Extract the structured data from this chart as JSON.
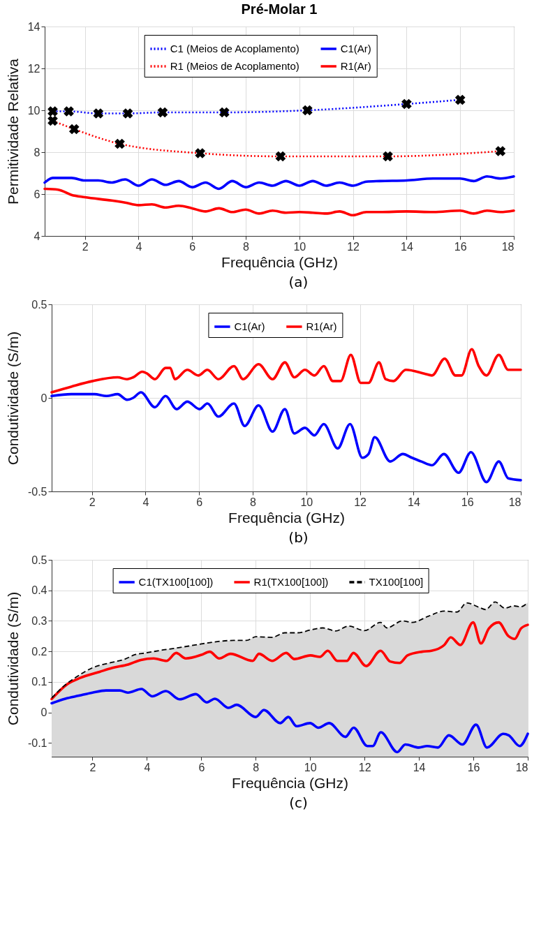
{
  "chart_data": [
    {
      "type": "line",
      "title": "Pré-Molar 1",
      "xlabel": "Frequência (GHz)",
      "ylabel": "Permitividade Relativa",
      "annotations": [
        "(a)"
      ],
      "xlim": [
        0.5,
        18
      ],
      "xticks": [
        2,
        4,
        6,
        8,
        10,
        12,
        14,
        16,
        18
      ],
      "ylim": [
        4,
        14
      ],
      "yticks": [
        4,
        6,
        8,
        10,
        12,
        14
      ],
      "grid": true,
      "legend": "top",
      "series": [
        {
          "name": "C1 (Meios de Acoplamento)",
          "color": "#0000ff",
          "line_style": "dotted",
          "marker": "cross",
          "x": [
            0.8,
            1.4,
            2.5,
            3.6,
            4.9,
            7.2,
            10.3,
            14,
            16
          ],
          "values": [
            9.95,
            9.95,
            9.85,
            9.85,
            9.9,
            9.9,
            10,
            10.3,
            10.5
          ]
        },
        {
          "name": "C1(Ar)",
          "color": "#0000ff",
          "line_style": "solid",
          "x": [
            0.5,
            0.8,
            1.5,
            2,
            2.5,
            3,
            3.5,
            4,
            4.5,
            5,
            5.5,
            6,
            6.5,
            7,
            7.5,
            8,
            8.5,
            9,
            9.5,
            10,
            10.5,
            11,
            11.5,
            12,
            12.5,
            13,
            14,
            15,
            16,
            16.5,
            17,
            17.5,
            18
          ],
          "values": [
            6.55,
            6.77,
            6.77,
            6.65,
            6.65,
            6.55,
            6.7,
            6.4,
            6.7,
            6.44,
            6.62,
            6.33,
            6.55,
            6.25,
            6.62,
            6.33,
            6.55,
            6.4,
            6.62,
            6.4,
            6.62,
            6.4,
            6.55,
            6.4,
            6.59,
            6.62,
            6.65,
            6.74,
            6.74,
            6.62,
            6.84,
            6.74,
            6.84
          ]
        },
        {
          "name": "R1 (Meios de Acoplamento)",
          "color": "#ff0000",
          "line_style": "dotted",
          "marker": "cross",
          "x": [
            0.8,
            1.6,
            3.3,
            6.3,
            9.3,
            13.3,
            17.5
          ],
          "values": [
            9.5,
            9.1,
            8.4,
            7.95,
            7.8,
            7.8,
            8.05
          ]
        },
        {
          "name": "R1(Ar)",
          "color": "#ff0000",
          "line_style": "solid",
          "x": [
            0.5,
            1,
            1.5,
            2,
            3,
            3.5,
            4,
            4.5,
            5,
            5.5,
            6,
            6.5,
            7,
            7.5,
            8,
            8.5,
            9,
            9.5,
            10,
            10.5,
            11,
            11.5,
            12,
            12.5,
            13,
            14,
            15,
            16,
            16.5,
            17,
            17.5,
            18
          ],
          "values": [
            6.25,
            6.21,
            5.96,
            5.85,
            5.69,
            5.59,
            5.47,
            5.51,
            5.36,
            5.44,
            5.32,
            5.17,
            5.32,
            5.14,
            5.26,
            5.07,
            5.21,
            5.11,
            5.14,
            5.11,
            5.07,
            5.17,
            4.99,
            5.14,
            5.14,
            5.17,
            5.14,
            5.21,
            5.07,
            5.21,
            5.14,
            5.21
          ]
        }
      ]
    },
    {
      "type": "line",
      "xlabel": "Frequência (GHz)",
      "ylabel": "Condutividade (S/m)",
      "annotations": [
        "(b)"
      ],
      "xlim": [
        0.5,
        18
      ],
      "xticks": [
        2,
        4,
        6,
        8,
        10,
        12,
        14,
        16,
        18
      ],
      "ylim": [
        -0.5,
        0.5
      ],
      "yticks": [
        -0.5,
        {
          "value": 0,
          "label": "0"
        },
        0.5
      ],
      "grid": true,
      "legend": "top",
      "series": [
        {
          "name": "C1(Ar)",
          "color": "#0000ff",
          "x": [
            0.5,
            1.23,
            2.09,
            2.55,
            2.96,
            3.31,
            3.54,
            3.83,
            4.35,
            4.75,
            5.16,
            5.56,
            6.02,
            6.31,
            6.72,
            7.3,
            7.7,
            8.22,
            8.74,
            9.2,
            9.55,
            9.95,
            10.3,
            10.65,
            11.17,
            11.63,
            12.09,
            12.32,
            12.55,
            13.13,
            13.6,
            13.94,
            14.29,
            14.69,
            15.13,
            15.68,
            16.14,
            16.72,
            17.18,
            17.53,
            18
          ],
          "values": [
            0.01,
            0.02,
            0.02,
            0.01,
            0.02,
            -0.01,
            0,
            0.03,
            -0.05,
            0.01,
            -0.06,
            -0.02,
            -0.06,
            -0.03,
            -0.1,
            -0.03,
            -0.15,
            -0.04,
            -0.18,
            -0.06,
            -0.19,
            -0.16,
            -0.2,
            -0.14,
            -0.27,
            -0.14,
            -0.32,
            -0.3,
            -0.21,
            -0.34,
            -0.3,
            -0.32,
            -0.34,
            -0.36,
            -0.3,
            -0.4,
            -0.29,
            -0.45,
            -0.34,
            -0.43,
            -0.44
          ]
        },
        {
          "name": "R1(Ar)",
          "color": "#ff0000",
          "x": [
            0.5,
            1.23,
            2.03,
            2.96,
            3.31,
            3.54,
            3.88,
            4.06,
            4.35,
            4.75,
            4.92,
            5.1,
            5.56,
            5.97,
            6.31,
            6.72,
            7.3,
            7.64,
            8.22,
            8.74,
            9.2,
            9.55,
            9.95,
            10.3,
            10.65,
            10.99,
            11.28,
            11.66,
            12.03,
            12.32,
            12.71,
            12.96,
            13.25,
            13.71,
            14.4,
            14.69,
            15.16,
            15.56,
            15.79,
            16.17,
            16.43,
            16.72,
            17.18,
            17.53,
            18
          ],
          "values": [
            0.03,
            0.06,
            0.09,
            0.11,
            0.1,
            0.11,
            0.14,
            0.13,
            0.1,
            0.16,
            0.16,
            0.1,
            0.15,
            0.12,
            0.15,
            0.1,
            0.17,
            0.1,
            0.18,
            0.1,
            0.19,
            0.11,
            0.15,
            0.12,
            0.17,
            0.09,
            0.09,
            0.23,
            0.08,
            0.08,
            0.19,
            0.1,
            0.09,
            0.15,
            0.13,
            0.12,
            0.21,
            0.12,
            0.12,
            0.26,
            0.17,
            0.12,
            0.23,
            0.15,
            0.15
          ]
        }
      ]
    },
    {
      "type": "line",
      "xlabel": "Frequência (GHz)",
      "ylabel": "Condutividade (S/m)",
      "annotations": [
        "(c)"
      ],
      "xlim": [
        0.5,
        18
      ],
      "xticks": [
        2,
        4,
        6,
        8,
        10,
        12,
        14,
        16,
        18
      ],
      "ylim": [
        -0.145,
        0.5
      ],
      "yticks": [
        -0.1,
        {
          "value": 0,
          "label": "0"
        },
        0.1,
        0.2,
        0.3,
        0.4,
        0.5
      ],
      "grid": true,
      "legend": "top",
      "series": [
        {
          "name": "C1(TX100[100])",
          "color": "#0000ff",
          "x": [
            0.5,
            1,
            1.5,
            2,
            2.5,
            3,
            3.3,
            3.8,
            4.2,
            4.7,
            5.2,
            5.8,
            6.2,
            6.5,
            7,
            7.3,
            8,
            8.3,
            8.9,
            9.2,
            9.5,
            10,
            10.3,
            10.7,
            11.3,
            11.6,
            12.1,
            12.3,
            12.6,
            13.2,
            13.5,
            14,
            14.3,
            14.7,
            15.1,
            15.6,
            16.1,
            16.5,
            17.1,
            17.3,
            17.7,
            18
          ],
          "values": [
            0.03,
            0.045,
            0.055,
            0.065,
            0.072,
            0.072,
            0.065,
            0.077,
            0.053,
            0.07,
            0.043,
            0.06,
            0.033,
            0.045,
            0.015,
            0.025,
            -0.015,
            0.008,
            -0.035,
            -0.015,
            -0.045,
            -0.035,
            -0.05,
            -0.035,
            -0.08,
            -0.05,
            -0.11,
            -0.11,
            -0.065,
            -0.13,
            -0.105,
            -0.115,
            -0.11,
            -0.115,
            -0.075,
            -0.105,
            -0.04,
            -0.115,
            -0.07,
            -0.075,
            -0.11,
            -0.07
          ]
        },
        {
          "name": "R1(TX100[100])",
          "color": "#ff0000",
          "x": [
            0.5,
            1.08,
            1.55,
            2.26,
            2.73,
            3.31,
            3.78,
            4.25,
            4.72,
            5.08,
            5.43,
            6.01,
            6.31,
            6.66,
            7.07,
            7.89,
            8.12,
            8.6,
            9.12,
            9.42,
            10.01,
            10.36,
            10.65,
            11,
            11.35,
            11.59,
            12.06,
            12.59,
            12.94,
            13.29,
            13.58,
            14.11,
            14.46,
            14.93,
            15.17,
            15.52,
            15.99,
            16.28,
            16.57,
            16.93,
            17.28,
            17.52,
            17.75,
            18
          ],
          "values": [
            0.044,
            0.093,
            0.113,
            0.133,
            0.146,
            0.157,
            0.172,
            0.177,
            0.169,
            0.195,
            0.177,
            0.189,
            0.199,
            0.177,
            0.192,
            0.169,
            0.192,
            0.169,
            0.195,
            0.175,
            0.187,
            0.182,
            0.202,
            0.169,
            0.169,
            0.195,
            0.152,
            0.202,
            0.167,
            0.162,
            0.187,
            0.199,
            0.202,
            0.221,
            0.246,
            0.221,
            0.295,
            0.226,
            0.275,
            0.295,
            0.251,
            0.241,
            0.275,
            0.287
          ]
        },
        {
          "name": "TX100[100]",
          "type": "line",
          "color": "#000000",
          "line_style": "dashed",
          "lower": [
            -0.145,
            -0.145,
            -0.145,
            -0.145,
            -0.145,
            -0.145,
            -0.145,
            -0.145,
            -0.145,
            -0.145,
            -0.145,
            -0.145,
            -0.145,
            -0.145,
            -0.145,
            -0.145,
            -0.145,
            -0.145,
            -0.145,
            -0.145,
            -0.145,
            -0.145,
            -0.145,
            -0.145,
            -0.145,
            -0.145,
            -0.145,
            -0.145,
            -0.145,
            -0.145,
            -0.145,
            -0.145,
            -0.145,
            -0.145,
            -0.145,
            -0.145,
            -0.145,
            -0.145
          ],
          "upper": [
            0.047,
            0.088,
            0.118,
            0.147,
            0.162,
            0.175,
            0.189,
            0.195,
            0.205,
            0.211,
            0.221,
            0.231,
            0.236,
            0.236,
            0.248,
            0.246,
            0.261,
            0.261,
            0.27,
            0.277,
            0.267,
            0.283,
            0.268,
            0.295,
            0.277,
            0.3,
            0.295,
            0.315,
            0.332,
            0.329,
            0.359,
            0.344,
            0.337,
            0.362,
            0.342,
            0.349,
            0.346,
            0.36
          ],
          "x": [
            0.5,
            0.97,
            1.44,
            2.02,
            2.61,
            3.2,
            3.55,
            3.96,
            4.61,
            5.08,
            5.78,
            6.48,
            7.19,
            7.66,
            8.01,
            8.6,
            9.07,
            9.54,
            10.01,
            10.47,
            10.94,
            11.41,
            12,
            12.59,
            12.82,
            13.4,
            13.76,
            14.34,
            14.93,
            15.4,
            15.75,
            16.22,
            16.45,
            16.8,
            17.15,
            17.5,
            17.74,
            18
          ],
          "values": [
            0.047,
            0.088,
            0.118,
            0.147,
            0.162,
            0.175,
            0.189,
            0.195,
            0.205,
            0.211,
            0.221,
            0.231,
            0.236,
            0.236,
            0.248,
            0.246,
            0.261,
            0.261,
            0.27,
            0.277,
            0.267,
            0.283,
            0.268,
            0.295,
            0.277,
            0.3,
            0.295,
            0.315,
            0.332,
            0.329,
            0.359,
            0.344,
            0.337,
            0.362,
            0.342,
            0.349,
            0.346,
            0.36
          ]
        }
      ]
    }
  ]
}
